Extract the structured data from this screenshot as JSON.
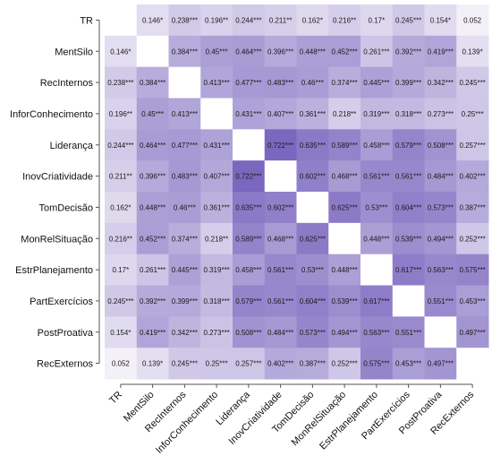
{
  "chart_data": {
    "type": "heatmap",
    "variables": [
      "TR",
      "MentSilo",
      "RecInternos",
      "InforConhecimento",
      "Liderança",
      "InovCriatividade",
      "TomDecisão",
      "MonRelSituação",
      "EstrPlanejamento",
      "PartExercícios",
      "PostProativa",
      "RecExternos"
    ],
    "values": [
      [
        null,
        0.146,
        0.238,
        0.196,
        0.244,
        0.211,
        0.162,
        0.216,
        0.17,
        0.245,
        0.154,
        0.052
      ],
      [
        0.146,
        null,
        0.384,
        0.45,
        0.464,
        0.396,
        0.448,
        0.452,
        0.261,
        0.392,
        0.419,
        0.139
      ],
      [
        0.238,
        0.384,
        null,
        0.413,
        0.477,
        0.483,
        0.46,
        0.374,
        0.445,
        0.399,
        0.342,
        0.245
      ],
      [
        0.196,
        0.45,
        0.413,
        null,
        0.431,
        0.407,
        0.361,
        0.218,
        0.319,
        0.318,
        0.273,
        0.25
      ],
      [
        0.244,
        0.464,
        0.477,
        0.431,
        null,
        0.722,
        0.635,
        0.589,
        0.458,
        0.579,
        0.508,
        0.257
      ],
      [
        0.211,
        0.396,
        0.483,
        0.407,
        0.722,
        null,
        0.602,
        0.468,
        0.561,
        0.561,
        0.484,
        0.402
      ],
      [
        0.162,
        0.448,
        0.46,
        0.361,
        0.635,
        0.602,
        null,
        0.625,
        0.53,
        0.604,
        0.573,
        0.387
      ],
      [
        0.216,
        0.452,
        0.374,
        0.218,
        0.589,
        0.468,
        0.625,
        null,
        0.448,
        0.539,
        0.494,
        0.252
      ],
      [
        0.17,
        0.261,
        0.445,
        0.319,
        0.458,
        0.561,
        0.53,
        0.448,
        null,
        0.617,
        0.563,
        0.575
      ],
      [
        0.245,
        0.392,
        0.399,
        0.318,
        0.579,
        0.561,
        0.604,
        0.539,
        0.617,
        null,
        0.551,
        0.453
      ],
      [
        0.154,
        0.419,
        0.342,
        0.273,
        0.508,
        0.484,
        0.573,
        0.494,
        0.563,
        0.551,
        null,
        0.497
      ],
      [
        0.052,
        0.139,
        0.245,
        0.25,
        0.257,
        0.402,
        0.387,
        0.252,
        0.575,
        0.453,
        0.497,
        null
      ]
    ],
    "labels": [
      [
        "",
        "0.146*",
        "0.238***",
        "0.196**",
        "0.244***",
        "0.211**",
        "0.162*",
        "0.216**",
        "0.17*",
        "0.245***",
        "0.154*",
        "0.052"
      ],
      [
        "0.146*",
        "",
        "0.384***",
        "0.45***",
        "0.464***",
        "0.396***",
        "0.448***",
        "0.452***",
        "0.261***",
        "0.392***",
        "0.419***",
        "0.139*"
      ],
      [
        "0.238***",
        "0.384***",
        "",
        "0.413***",
        "0.477***",
        "0.483***",
        "0.46***",
        "0.374***",
        "0.445***",
        "0.399***",
        "0.342***",
        "0.245***"
      ],
      [
        "0.196**",
        "0.45***",
        "0.413***",
        "",
        "0.431***",
        "0.407***",
        "0.361***",
        "0.218**",
        "0.319***",
        "0.318***",
        "0.273***",
        "0.25***"
      ],
      [
        "0.244***",
        "0.464***",
        "0.477***",
        "0.431***",
        "",
        "0.722***",
        "0.635***",
        "0.589***",
        "0.458***",
        "0.579***",
        "0.508***",
        "0.257***"
      ],
      [
        "0.211**",
        "0.396***",
        "0.483***",
        "0.407***",
        "0.722***",
        "",
        "0.602***",
        "0.468***",
        "0.561***",
        "0.561***",
        "0.484***",
        "0.402***"
      ],
      [
        "0.162*",
        "0.448***",
        "0.46***",
        "0.361***",
        "0.635***",
        "0.602***",
        "",
        "0.625***",
        "0.53***",
        "0.604***",
        "0.573***",
        "0.387***"
      ],
      [
        "0.216**",
        "0.452***",
        "0.374***",
        "0.218**",
        "0.589***",
        "0.468***",
        "0.625***",
        "",
        "0.448***",
        "0.539***",
        "0.494***",
        "0.252***"
      ],
      [
        "0.17*",
        "0.261***",
        "0.445***",
        "0.319***",
        "0.458***",
        "0.561***",
        "0.53***",
        "0.448***",
        "",
        "0.617***",
        "0.563***",
        "0.575***"
      ],
      [
        "0.245***",
        "0.392***",
        "0.399***",
        "0.318***",
        "0.579***",
        "0.561***",
        "0.604***",
        "0.539***",
        "0.617***",
        "",
        "0.551***",
        "0.453***"
      ],
      [
        "0.154*",
        "0.419***",
        "0.342***",
        "0.273***",
        "0.508***",
        "0.484***",
        "0.573***",
        "0.494***",
        "0.563***",
        "0.551***",
        "",
        "0.497***"
      ],
      [
        "0.052",
        "0.139*",
        "0.245***",
        "0.25***",
        "0.257***",
        "0.402***",
        "0.387***",
        "0.252***",
        "0.575***",
        "0.453***",
        "0.497***",
        ""
      ]
    ],
    "color_scale": {
      "low": "#f3f0f8",
      "high": "#7a68bf",
      "min": 0.05,
      "max": 0.72
    },
    "diagonal_color": "#ffffff",
    "title": "",
    "xlabel": "",
    "ylabel": "",
    "legend": "none"
  }
}
